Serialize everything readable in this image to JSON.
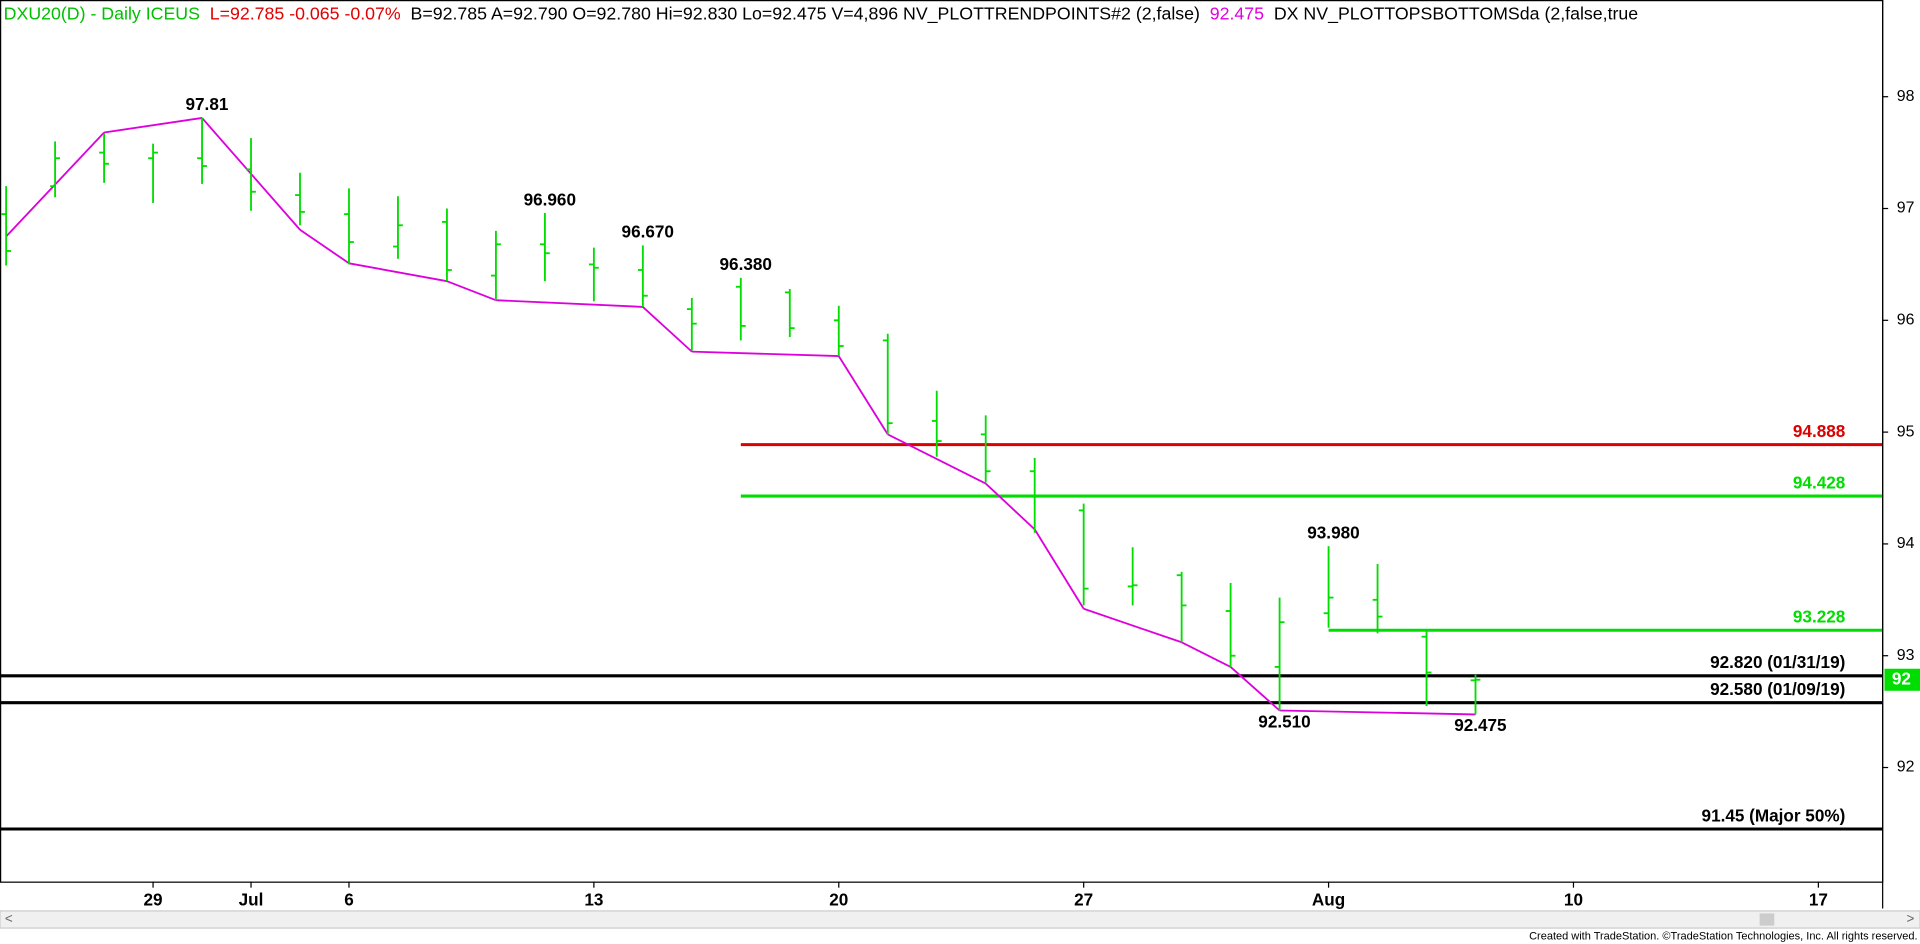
{
  "header": [
    {
      "text": "DXU20(D) - Daily  ICEUS",
      "color": "#00c000"
    },
    {
      "text": "L=92.785  -0.065  -0.07%",
      "color": "#e00000"
    },
    {
      "text": "B=92.785  A=92.790  O=92.780  Hi=92.830  Lo=92.475  V=4,896  NV_PLOTTRENDPOINTS#2 (2,false)",
      "color": "#000000"
    },
    {
      "text": "92.475",
      "color": "#e000e0"
    },
    {
      "text": "DX NV_PLOTTOPSBOTTOMSda (2,false,true",
      "color": "#000000"
    }
  ],
  "chart_data": {
    "type": "ohlc",
    "categories": [
      null,
      null,
      null,
      "29",
      null,
      "Jul",
      null,
      "6",
      null,
      null,
      null,
      null,
      "13",
      null,
      null,
      null,
      null,
      "20",
      null,
      null,
      null,
      null,
      "27",
      null,
      null,
      null,
      null,
      "Aug",
      null,
      null,
      null,
      null,
      "10",
      null,
      null,
      null,
      null,
      "17",
      null
    ],
    "open": [
      96.95,
      97.2,
      97.5,
      97.45,
      97.45,
      97.35,
      97.12,
      96.95,
      96.66,
      96.88,
      96.4,
      96.68,
      96.5,
      96.45,
      96.1,
      96.3,
      96.25,
      96.0,
      95.82,
      95.1,
      94.98,
      94.65,
      94.3,
      93.62,
      93.72,
      93.4,
      92.9,
      93.38,
      93.5,
      93.17,
      92.78,
      null,
      null,
      null,
      null,
      null,
      null,
      null,
      null
    ],
    "high": [
      97.2,
      97.6,
      97.67,
      97.58,
      97.81,
      97.63,
      97.32,
      97.18,
      97.11,
      97.0,
      96.8,
      96.96,
      96.65,
      96.67,
      96.2,
      96.38,
      96.28,
      96.13,
      95.88,
      95.37,
      95.15,
      94.77,
      94.36,
      93.97,
      93.75,
      93.65,
      93.52,
      93.98,
      93.82,
      93.22,
      92.83,
      null,
      null,
      null,
      null,
      null,
      null,
      null,
      null
    ],
    "low": [
      96.49,
      97.1,
      97.23,
      97.05,
      97.22,
      96.98,
      96.85,
      96.5,
      96.55,
      96.35,
      96.18,
      96.35,
      96.17,
      96.12,
      95.73,
      95.82,
      95.85,
      95.68,
      94.98,
      94.78,
      94.55,
      94.1,
      93.45,
      93.45,
      93.12,
      92.9,
      92.51,
      93.25,
      93.2,
      92.55,
      92.475,
      null,
      null,
      null,
      null,
      null,
      null,
      null,
      null
    ],
    "close": [
      96.62,
      97.45,
      97.4,
      97.5,
      97.38,
      97.15,
      96.97,
      96.7,
      96.85,
      96.45,
      96.68,
      96.6,
      96.47,
      96.22,
      95.97,
      95.95,
      95.93,
      95.77,
      95.08,
      94.92,
      94.65,
      94.43,
      93.6,
      93.63,
      93.45,
      93.0,
      93.3,
      93.52,
      93.35,
      92.85,
      92.785,
      null,
      null,
      null,
      null,
      null,
      null,
      null,
      null
    ],
    "bar_color": "#00dd00",
    "trend": {
      "color": "#dd00dd",
      "values": [
        96.75,
        null,
        97.68,
        null,
        97.81,
        null,
        96.81,
        96.51,
        null,
        96.35,
        96.18,
        null,
        null,
        96.12,
        95.72,
        null,
        null,
        95.68,
        94.98,
        null,
        94.54,
        94.13,
        93.42,
        null,
        93.12,
        92.9,
        92.51,
        null,
        null,
        null,
        92.475,
        null,
        null,
        null,
        null,
        null,
        null,
        null,
        null
      ]
    },
    "annotations": [
      {
        "value": 97.81,
        "label": "97.81"
      },
      {
        "value": 96.96,
        "label": "96.960"
      },
      {
        "value": 96.67,
        "label": "96.670"
      },
      {
        "value": 96.38,
        "label": "96.380"
      },
      {
        "value": 93.98,
        "label": "93.980"
      },
      {
        "value": 92.51,
        "label": "92.510"
      },
      {
        "value": 92.475,
        "label": "92.475"
      }
    ],
    "levels": [
      {
        "value": 94.888,
        "label": "94.888",
        "color": "#dd0000"
      },
      {
        "value": 94.428,
        "label": "94.428",
        "color": "#00dd00"
      },
      {
        "value": 93.228,
        "label": "93.228",
        "color": "#00dd00"
      },
      {
        "value": 92.82,
        "label": "92.820 (01/31/19)",
        "color": "#000000"
      },
      {
        "value": 92.58,
        "label": "92.580 (01/09/19)",
        "color": "#000000"
      },
      {
        "value": 91.45,
        "label": "91.45 (Major 50%)",
        "color": "#000000"
      }
    ],
    "last_price_tag": "92",
    "ylim": [
      90.98,
      98.865
    ],
    "yticks": [
      92,
      93,
      94,
      95,
      96,
      97,
      98
    ]
  },
  "footer": "Created with TradeStation. ©TradeStation Technologies, Inc. All rights reserved."
}
